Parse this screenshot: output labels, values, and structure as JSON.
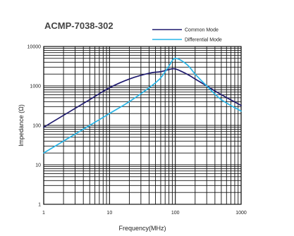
{
  "chart_data": {
    "type": "line",
    "title": "ACMP-7038-302",
    "xlabel": "Frequency(MHz)",
    "ylabel": "Impedance (Ω)",
    "xscale": "log",
    "yscale": "log",
    "xlim": [
      1,
      1000
    ],
    "ylim": [
      1,
      10000
    ],
    "x_ticks": [
      "1",
      "10",
      "100",
      "1000"
    ],
    "y_ticks": [
      "10000",
      "1000",
      "100",
      "10",
      "1"
    ],
    "grid": true,
    "legend_position": "top-right",
    "series": [
      {
        "name": "Common Mode",
        "color": "#1f1a6e",
        "points": [
          [
            1,
            90
          ],
          [
            2,
            180
          ],
          [
            5,
            450
          ],
          [
            10,
            900
          ],
          [
            20,
            1500
          ],
          [
            40,
            2100
          ],
          [
            60,
            2300
          ],
          [
            80,
            2600
          ],
          [
            100,
            2700
          ],
          [
            150,
            2000
          ],
          [
            200,
            1500
          ],
          [
            300,
            1000
          ],
          [
            500,
            600
          ],
          [
            1000,
            320
          ]
        ]
      },
      {
        "name": "Differential Mode",
        "color": "#29b6e8",
        "points": [
          [
            1,
            20
          ],
          [
            2,
            40
          ],
          [
            5,
            100
          ],
          [
            10,
            200
          ],
          [
            20,
            400
          ],
          [
            40,
            900
          ],
          [
            60,
            1600
          ],
          [
            80,
            3200
          ],
          [
            100,
            5000
          ],
          [
            150,
            3500
          ],
          [
            200,
            2000
          ],
          [
            300,
            1000
          ],
          [
            500,
            450
          ],
          [
            1000,
            230
          ]
        ]
      }
    ]
  }
}
